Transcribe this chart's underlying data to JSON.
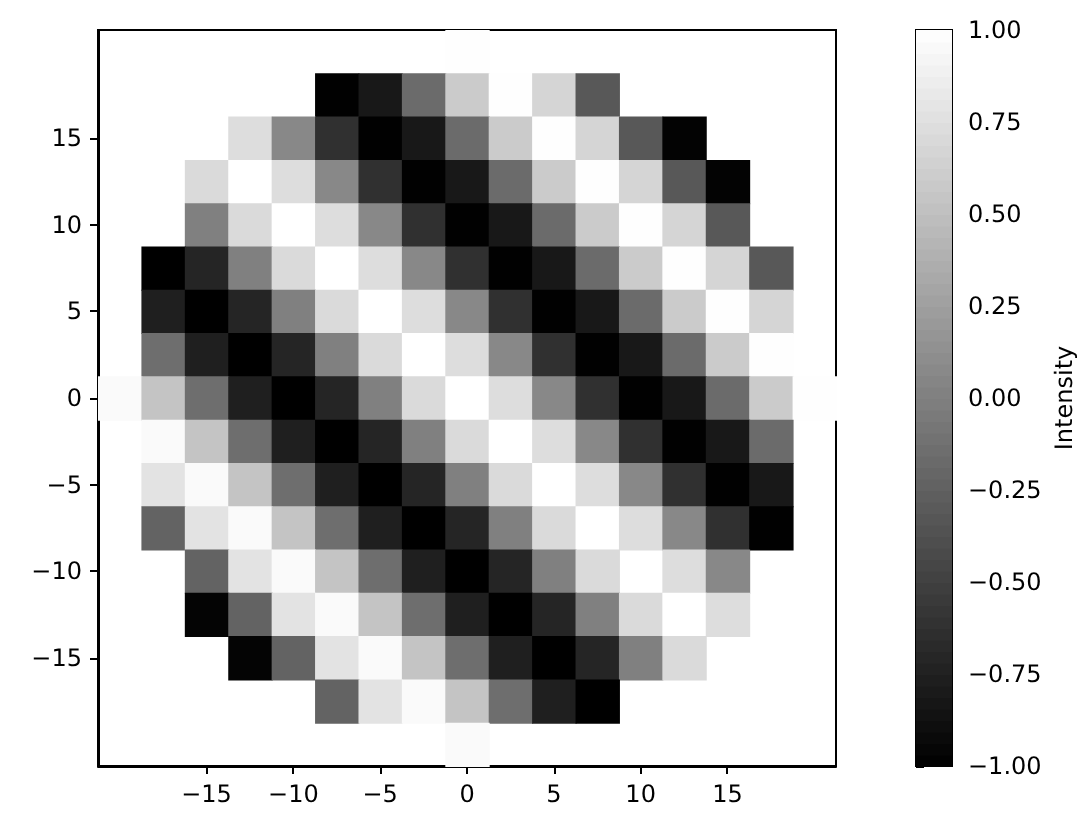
{
  "chart_data": {
    "type": "heatmap",
    "clabel": "Intensity",
    "categories": [
      null,
      null,
      "−15",
      null,
      "−10",
      null,
      "−5",
      null,
      "0",
      null,
      "5",
      null,
      "10",
      null,
      "15",
      null,
      null
    ],
    "y_categories": [
      null,
      null,
      "15",
      null,
      "10",
      null,
      "5",
      null,
      "0",
      null,
      "−5",
      null,
      "−10",
      null,
      "−15",
      null,
      null
    ],
    "clim": [
      -1,
      1
    ],
    "cticks": [
      {
        "value": -1,
        "label": "−1.00"
      },
      {
        "value": -0.75,
        "label": "−0.75"
      },
      {
        "value": -0.5,
        "label": "−0.50"
      },
      {
        "value": -0.25,
        "label": "−0.25"
      },
      {
        "value": 0,
        "label": "0.00"
      },
      {
        "value": 0.25,
        "label": "0.25"
      },
      {
        "value": 0.5,
        "label": "0.50"
      },
      {
        "value": 0.75,
        "label": "0.75"
      },
      {
        "value": 1,
        "label": "1.00"
      }
    ],
    "cells": [
      [
        null,
        null,
        null,
        null,
        null,
        null,
        null,
        null,
        0.99,
        null,
        null,
        null,
        null,
        null,
        null,
        null,
        null
      ],
      [
        null,
        null,
        null,
        null,
        null,
        -0.99,
        -0.81,
        -0.16,
        0.59,
        0.99,
        0.67,
        -0.31,
        null,
        null,
        null,
        null,
        null
      ],
      [
        null,
        null,
        null,
        0.73,
        0.07,
        -0.62,
        -0.99,
        -0.81,
        -0.16,
        0.59,
        0.99,
        0.67,
        -0.31,
        -0.98,
        null,
        null,
        null
      ],
      [
        null,
        null,
        0.71,
        1,
        0.73,
        0.07,
        -0.62,
        -0.99,
        -0.81,
        -0.16,
        0.59,
        0.99,
        0.67,
        -0.31,
        -0.98,
        null,
        null
      ],
      [
        null,
        null,
        0,
        0.71,
        1,
        0.73,
        0.07,
        -0.62,
        -0.99,
        -0.81,
        -0.16,
        0.59,
        0.99,
        0.67,
        -0.31,
        null,
        null
      ],
      [
        null,
        -1,
        -0.71,
        0,
        0.71,
        1,
        0.73,
        0.07,
        -0.62,
        -0.99,
        -0.81,
        -0.16,
        0.59,
        0.99,
        0.67,
        -0.31,
        null
      ],
      [
        null,
        -0.76,
        -1,
        -0.71,
        0,
        0.71,
        1,
        0.73,
        0.07,
        -0.62,
        -0.99,
        -0.81,
        -0.16,
        0.59,
        0.99,
        0.67,
        null
      ],
      [
        null,
        -0.14,
        -0.76,
        -1,
        -0.71,
        0,
        0.71,
        1,
        0.73,
        0.07,
        -0.62,
        -0.99,
        -0.81,
        -0.16,
        0.59,
        0.99,
        null
      ],
      [
        0.96,
        0.54,
        -0.14,
        -0.76,
        -1,
        -0.71,
        0,
        0.71,
        1,
        0.73,
        0.07,
        -0.62,
        -0.99,
        -0.81,
        -0.16,
        0.59,
        0.99
      ],
      [
        null,
        0.96,
        0.54,
        -0.14,
        -0.76,
        -1,
        -0.71,
        0,
        0.71,
        1,
        0.73,
        0.07,
        -0.62,
        -0.99,
        -0.81,
        -0.16,
        null
      ],
      [
        null,
        0.78,
        0.96,
        0.54,
        -0.14,
        -0.76,
        -1,
        -0.71,
        0,
        0.71,
        1,
        0.73,
        0.07,
        -0.62,
        -0.99,
        -0.81,
        null
      ],
      [
        null,
        -0.22,
        0.78,
        0.96,
        0.54,
        -0.14,
        -0.76,
        -1,
        -0.71,
        0,
        0.71,
        1,
        0.73,
        0.07,
        -0.62,
        -0.99,
        null
      ],
      [
        null,
        null,
        -0.22,
        0.78,
        0.96,
        0.54,
        -0.14,
        -0.76,
        -1,
        -0.71,
        0,
        0.71,
        null,
        0.73,
        0.07,
        null,
        null
      ],
      [
        null,
        null,
        -0.97,
        -0.22,
        0.78,
        0.96,
        0.54,
        -0.14,
        -0.76,
        -1,
        -0.71,
        0,
        0.71,
        1,
        0.73,
        null,
        null
      ],
      [
        null,
        null,
        null,
        -0.97,
        -0.22,
        0.78,
        0.96,
        0.54,
        -0.14,
        -0.76,
        -1,
        -0.71,
        0,
        0.71,
        null,
        null,
        null
      ],
      [
        null,
        null,
        null,
        null,
        null,
        -0.22,
        0.78,
        0.96,
        0.54,
        -0.14,
        -0.76,
        -1,
        null,
        null,
        null,
        null,
        null
      ],
      [
        null,
        null,
        null,
        null,
        null,
        null,
        null,
        null,
        0.96,
        null,
        null,
        null,
        null,
        null,
        null,
        null,
        null
      ]
    ]
  }
}
